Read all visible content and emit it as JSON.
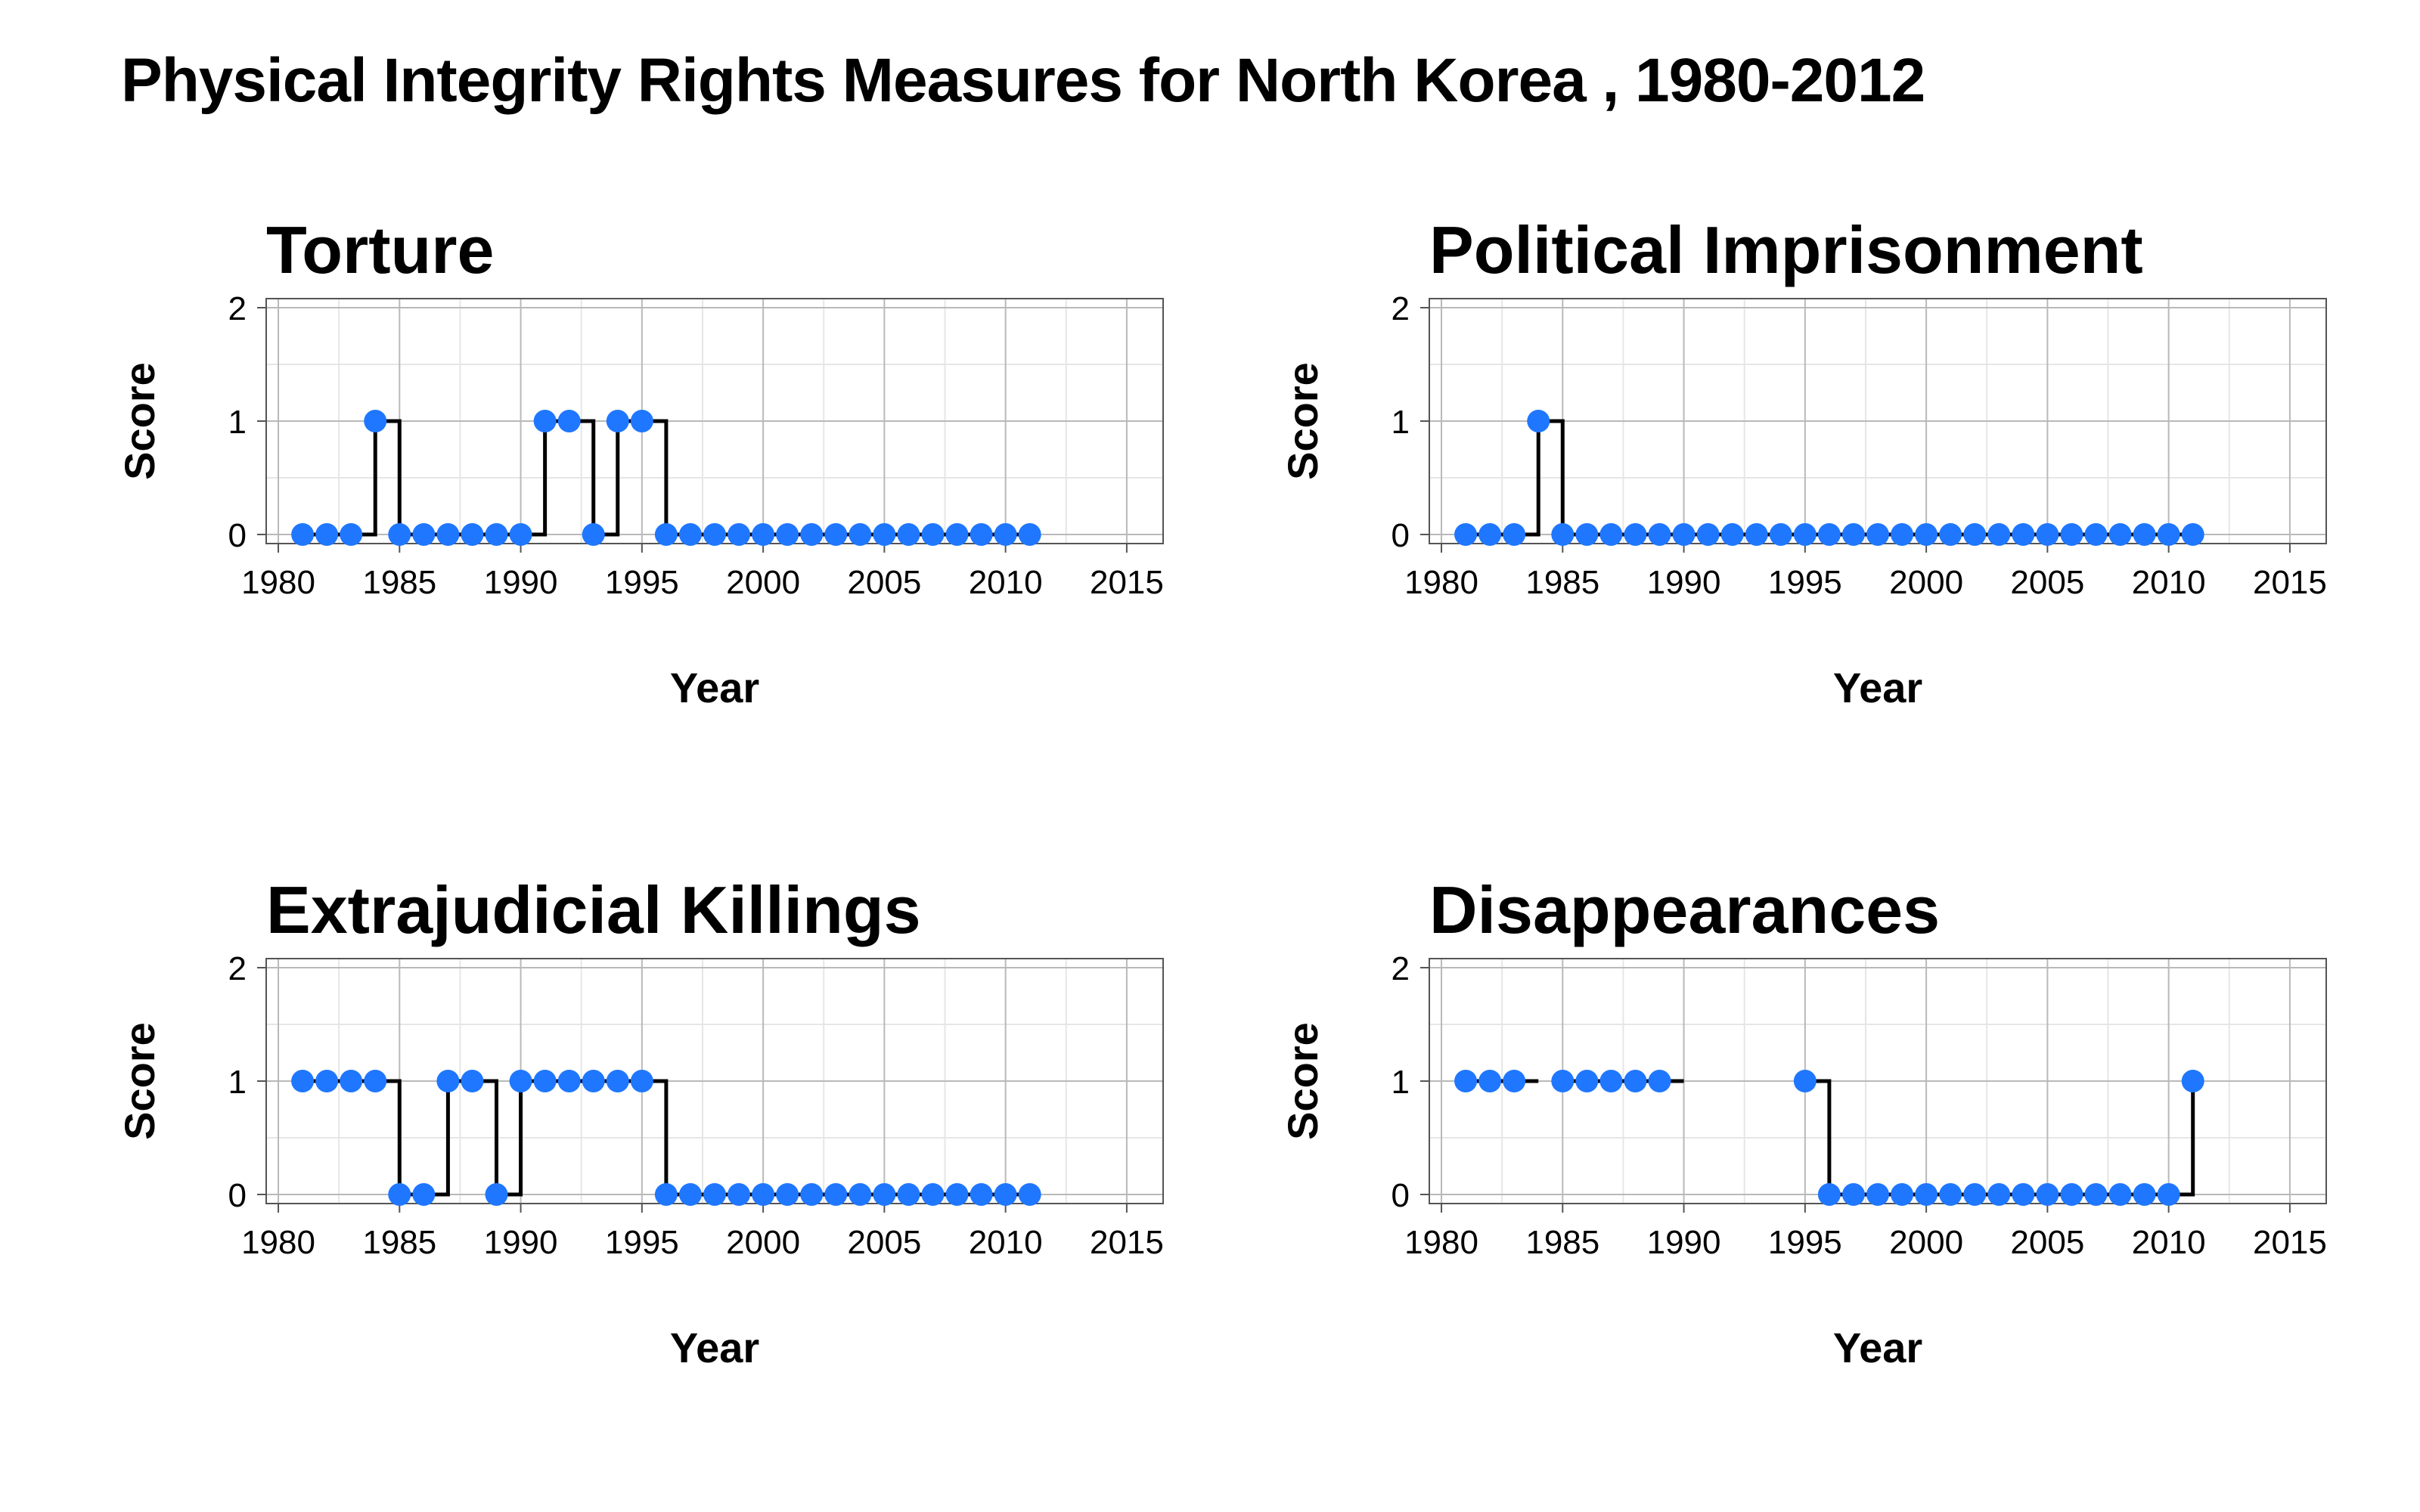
{
  "title": "Physical Integrity Rights Measures for North Korea , 1980-2012",
  "colors": {
    "point": "#1f77ff",
    "line": "#000000",
    "grid_major": "#b9b9b9",
    "grid_minor": "#e6e6e6",
    "frame": "#555555"
  },
  "chart_data": [
    {
      "type": "line",
      "step": true,
      "title": "Torture",
      "xlabel": "Year",
      "ylabel": "Score",
      "xlim": [
        1979.5,
        2016.5
      ],
      "ylim": [
        -0.08,
        2.08
      ],
      "xticks": [
        1980,
        1985,
        1990,
        1995,
        2000,
        2005,
        2010,
        2015
      ],
      "yticks": [
        0,
        1,
        2
      ],
      "grid": true,
      "x": [
        1981,
        1982,
        1983,
        1984,
        1985,
        1986,
        1987,
        1988,
        1989,
        1990,
        1991,
        1992,
        1993,
        1994,
        1995,
        1996,
        1997,
        1998,
        1999,
        2000,
        2001,
        2002,
        2003,
        2004,
        2005,
        2006,
        2007,
        2008,
        2009,
        2010,
        2011
      ],
      "y": [
        0,
        0,
        0,
        1,
        0,
        0,
        0,
        0,
        0,
        0,
        1,
        1,
        0,
        1,
        1,
        0,
        0,
        0,
        0,
        0,
        0,
        0,
        0,
        0,
        0,
        0,
        0,
        0,
        0,
        0,
        0
      ]
    },
    {
      "type": "line",
      "step": true,
      "title": "Political Imprisonment",
      "xlabel": "Year",
      "ylabel": "Score",
      "xlim": [
        1979.5,
        2016.5
      ],
      "ylim": [
        -0.08,
        2.08
      ],
      "xticks": [
        1980,
        1985,
        1990,
        1995,
        2000,
        2005,
        2010,
        2015
      ],
      "yticks": [
        0,
        1,
        2
      ],
      "grid": true,
      "x": [
        1981,
        1982,
        1983,
        1984,
        1985,
        1986,
        1987,
        1988,
        1989,
        1990,
        1991,
        1992,
        1993,
        1994,
        1995,
        1996,
        1997,
        1998,
        1999,
        2000,
        2001,
        2002,
        2003,
        2004,
        2005,
        2006,
        2007,
        2008,
        2009,
        2010,
        2011
      ],
      "y": [
        0,
        0,
        0,
        1,
        0,
        0,
        0,
        0,
        0,
        0,
        0,
        0,
        0,
        0,
        0,
        0,
        0,
        0,
        0,
        0,
        0,
        0,
        0,
        0,
        0,
        0,
        0,
        0,
        0,
        0,
        0
      ]
    },
    {
      "type": "line",
      "step": true,
      "title": "Extrajudicial Killings",
      "xlabel": "Year",
      "ylabel": "Score",
      "xlim": [
        1979.5,
        2016.5
      ],
      "ylim": [
        -0.08,
        2.08
      ],
      "xticks": [
        1980,
        1985,
        1990,
        1995,
        2000,
        2005,
        2010,
        2015
      ],
      "yticks": [
        0,
        1,
        2
      ],
      "grid": true,
      "x": [
        1981,
        1982,
        1983,
        1984,
        1985,
        1986,
        1987,
        1988,
        1989,
        1990,
        1991,
        1992,
        1993,
        1994,
        1995,
        1996,
        1997,
        1998,
        1999,
        2000,
        2001,
        2002,
        2003,
        2004,
        2005,
        2006,
        2007,
        2008,
        2009,
        2010,
        2011
      ],
      "y": [
        1,
        1,
        1,
        1,
        0,
        0,
        1,
        1,
        0,
        1,
        1,
        1,
        1,
        1,
        1,
        0,
        0,
        0,
        0,
        0,
        0,
        0,
        0,
        0,
        0,
        0,
        0,
        0,
        0,
        0,
        0
      ]
    },
    {
      "type": "line",
      "step": true,
      "title": "Disappearances",
      "xlabel": "Year",
      "ylabel": "Score",
      "xlim": [
        1979.5,
        2016.5
      ],
      "ylim": [
        -0.08,
        2.08
      ],
      "xticks": [
        1980,
        1985,
        1990,
        1995,
        2000,
        2005,
        2010,
        2015
      ],
      "yticks": [
        0,
        1,
        2
      ],
      "grid": true,
      "x": [
        1981,
        1982,
        1983,
        1984,
        1985,
        1986,
        1987,
        1988,
        1989,
        1990,
        1991,
        1992,
        1993,
        1994,
        1995,
        1996,
        1997,
        1998,
        1999,
        2000,
        2001,
        2002,
        2003,
        2004,
        2005,
        2006,
        2007,
        2008,
        2009,
        2010,
        2011
      ],
      "y": [
        1,
        1,
        1,
        null,
        1,
        1,
        1,
        1,
        1,
        null,
        null,
        null,
        null,
        null,
        1,
        0,
        0,
        0,
        0,
        0,
        0,
        0,
        0,
        0,
        0,
        0,
        0,
        0,
        0,
        0,
        1
      ]
    }
  ]
}
